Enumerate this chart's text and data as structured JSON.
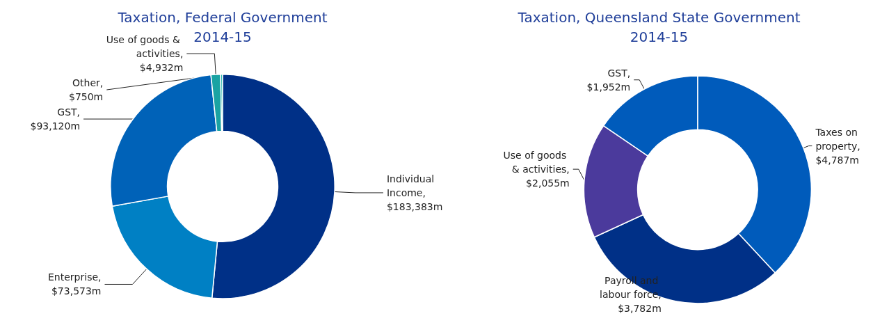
{
  "chart_data": [
    {
      "type": "donut",
      "title": "Taxation, Federal Government\n2014-15",
      "categories": [
        "Individual Income",
        "Enterprise",
        "GST",
        "Use of goods & activities",
        "Other"
      ],
      "values": [
        183383,
        73573,
        93120,
        4932,
        750
      ],
      "value_labels": [
        ", $183,383m",
        ", $73,573m",
        ", $93,120m",
        ", $4,932m",
        ", $750m"
      ],
      "colors": [
        "#003087",
        "#0080c4",
        "#0062b8",
        "#1aa3a3",
        "#2bb8b0"
      ]
    },
    {
      "type": "donut",
      "title": "Taxation, Queensland State Government\n2014-15",
      "categories": [
        "Taxes on property",
        "Payroll and labour force",
        "Use of goods & activities",
        "GST"
      ],
      "values": [
        4787,
        3782,
        2055,
        1952
      ],
      "value_labels": [
        ", $4,787m",
        ", $3,782m",
        ", $2,055m",
        ", $1,952m"
      ],
      "colors": [
        "#005bbb",
        "#003087",
        "#4b3a9c",
        "#005bbb"
      ]
    }
  ]
}
